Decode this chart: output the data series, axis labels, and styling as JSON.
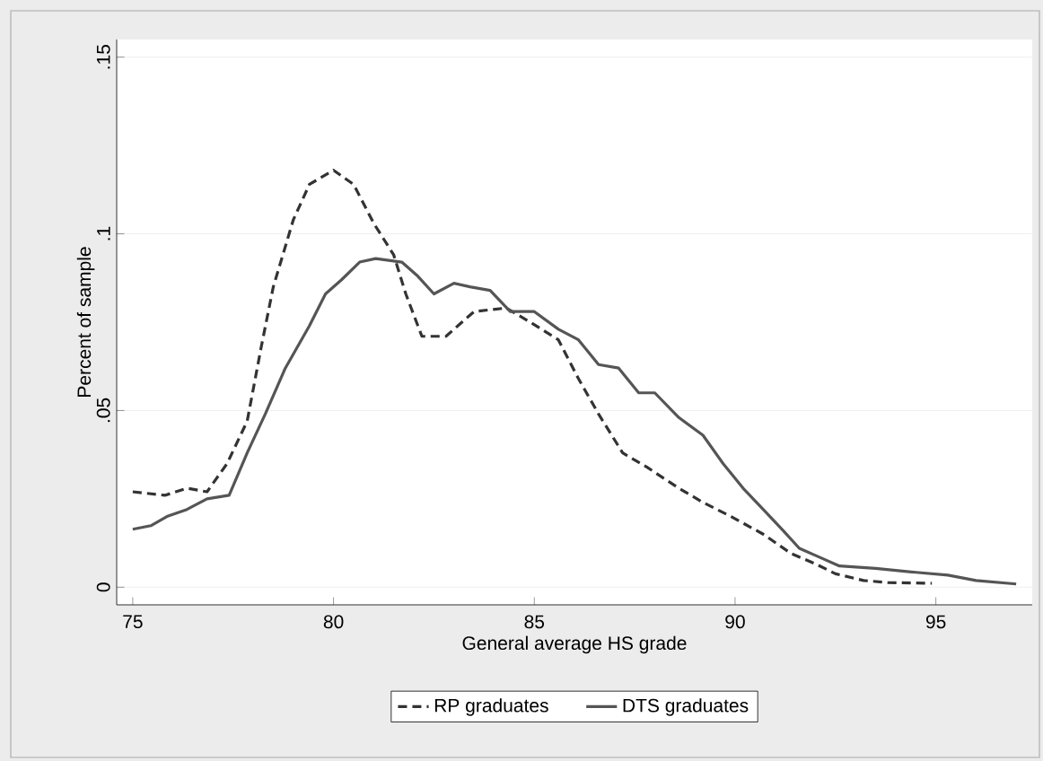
{
  "chart_data": {
    "type": "line",
    "xlabel": "General average HS grade",
    "ylabel": "Percent of sample",
    "xlim": [
      74.6,
      97.4
    ],
    "ylim": [
      -0.005,
      0.155
    ],
    "xticks": [
      75,
      80,
      85,
      90,
      95
    ],
    "yticks": [
      {
        "value": 0,
        "label": "0"
      },
      {
        "value": 0.05,
        "label": ".05"
      },
      {
        "value": 0.1,
        "label": ".1"
      },
      {
        "value": 0.15,
        "label": ".15"
      }
    ],
    "grid": "y",
    "legend": "bottom",
    "series": [
      {
        "name": "RP graduates",
        "color": "#333333",
        "line_style": "dashed",
        "x": [
          75,
          75.8,
          76.35,
          76.85,
          77.35,
          77.85,
          78.2,
          78.5,
          79.0,
          79.4,
          80,
          80.5,
          81,
          81.5,
          81.8,
          82.2,
          82.8,
          83.5,
          84.3,
          84.9,
          85.6,
          86.1,
          86.6,
          87.2,
          87.8,
          88.6,
          89.2,
          89.9,
          90.7,
          91.4,
          92,
          92.5,
          93.2,
          93.8,
          94.9
        ],
        "values": [
          0.027,
          0.026,
          0.028,
          0.027,
          0.035,
          0.047,
          0.068,
          0.085,
          0.104,
          0.114,
          0.118,
          0.114,
          0.103,
          0.094,
          0.083,
          0.071,
          0.071,
          0.078,
          0.079,
          0.075,
          0.07,
          0.059,
          0.049,
          0.038,
          0.034,
          0.028,
          0.024,
          0.02,
          0.015,
          0.0095,
          0.0066,
          0.0038,
          0.0019,
          0.0013,
          0.0011
        ]
      },
      {
        "name": "DTS graduates",
        "color": "#555555",
        "line_style": "solid",
        "x": [
          75,
          75.45,
          75.85,
          76.35,
          76.85,
          77.4,
          77.85,
          78.3,
          78.8,
          79.4,
          79.8,
          80.2,
          80.65,
          81.05,
          81.7,
          82.1,
          82.5,
          83.0,
          83.4,
          83.9,
          84.4,
          85,
          85.6,
          86.1,
          86.6,
          87.1,
          87.6,
          88.0,
          88.6,
          89.2,
          89.7,
          90.2,
          90.7,
          91.2,
          91.6,
          92.1,
          92.6,
          93.5,
          94.5,
          95.3,
          96.0,
          97.0
        ],
        "values": [
          0.0164,
          0.0174,
          0.02,
          0.022,
          0.025,
          0.026,
          0.038,
          0.049,
          0.062,
          0.074,
          0.083,
          0.087,
          0.092,
          0.093,
          0.092,
          0.088,
          0.083,
          0.086,
          0.085,
          0.084,
          0.078,
          0.078,
          0.073,
          0.07,
          0.063,
          0.062,
          0.055,
          0.055,
          0.048,
          0.043,
          0.035,
          0.028,
          0.022,
          0.016,
          0.011,
          0.0085,
          0.006,
          0.0053,
          0.0042,
          0.0034,
          0.0019,
          0.0009
        ]
      }
    ]
  }
}
